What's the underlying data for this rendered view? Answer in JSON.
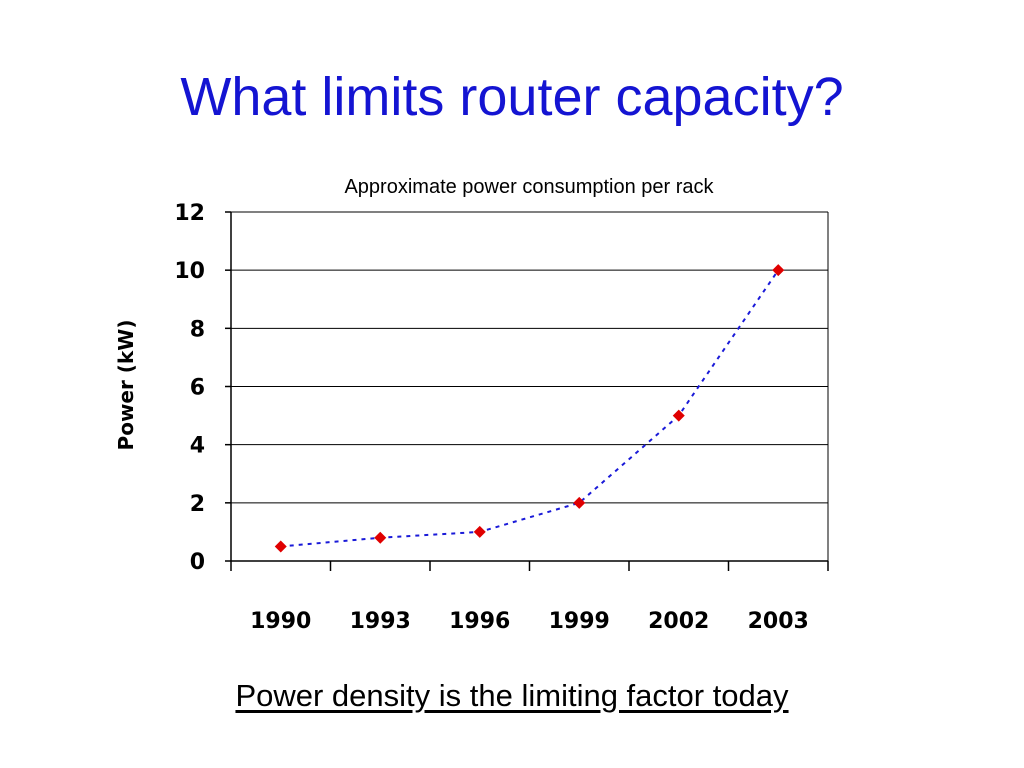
{
  "slide": {
    "title": "What limits router capacity?",
    "caption": "Power density is the limiting factor today"
  },
  "chart_data": {
    "type": "line",
    "title": "Approximate power consumption per rack",
    "xlabel": "",
    "ylabel": "Power (kW)",
    "categories": [
      "1990",
      "1993",
      "1996",
      "1999",
      "2002",
      "2003"
    ],
    "series": [
      {
        "values": [
          0.5,
          0.8,
          1,
          2,
          5,
          10
        ]
      }
    ],
    "ylim": [
      0,
      12
    ],
    "yticks": [
      0,
      2,
      4,
      6,
      8,
      10,
      12
    ],
    "grid": "horizontal",
    "legend": "none",
    "colors": {
      "marker": "#e00000",
      "line": "#1a1ad8",
      "grid": "#000000",
      "title": "#1414d2"
    }
  }
}
